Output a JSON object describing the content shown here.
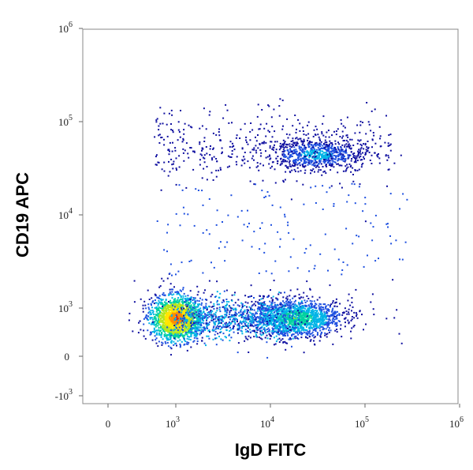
{
  "chart_data": {
    "type": "scatter",
    "subtype": "flow-cytometry density dot plot (biexponential axes)",
    "title": "",
    "xlabel": "IgD FITC",
    "ylabel": "CD19 APC",
    "x_scale": "biexponential",
    "y_scale": "biexponential",
    "xlim": [
      -500,
      1000000
    ],
    "ylim": [
      -1500,
      1000000
    ],
    "x_ticks": [
      {
        "value": 0,
        "base": "0",
        "exp": ""
      },
      {
        "value": 1000,
        "base": "10",
        "exp": "3"
      },
      {
        "value": 10000,
        "base": "10",
        "exp": "4"
      },
      {
        "value": 100000,
        "base": "10",
        "exp": "5"
      },
      {
        "value": 1000000,
        "base": "10",
        "exp": "6"
      }
    ],
    "y_ticks": [
      {
        "value": -1000,
        "base": "-10",
        "exp": "3"
      },
      {
        "value": 0,
        "base": "0",
        "exp": ""
      },
      {
        "value": 1000,
        "base": "10",
        "exp": "3"
      },
      {
        "value": 10000,
        "base": "10",
        "exp": "4"
      },
      {
        "value": 100000,
        "base": "10",
        "exp": "5"
      },
      {
        "value": 1000000,
        "base": "10",
        "exp": "6"
      }
    ],
    "grid": false,
    "legend": "none",
    "density_colormap": [
      "#1010a0",
      "#1e50e0",
      "#00b4e6",
      "#00d2a0",
      "#b4e61e",
      "#ffe600",
      "#ff8c00",
      "#e61e0a"
    ],
    "populations": [
      {
        "x_center": 1000,
        "y_center": 800,
        "density": "highest"
      },
      {
        "x_center": 18000,
        "y_center": 800,
        "density": "high"
      },
      {
        "x_center": 30000,
        "y_center": 45000,
        "density": "medium"
      }
    ]
  }
}
